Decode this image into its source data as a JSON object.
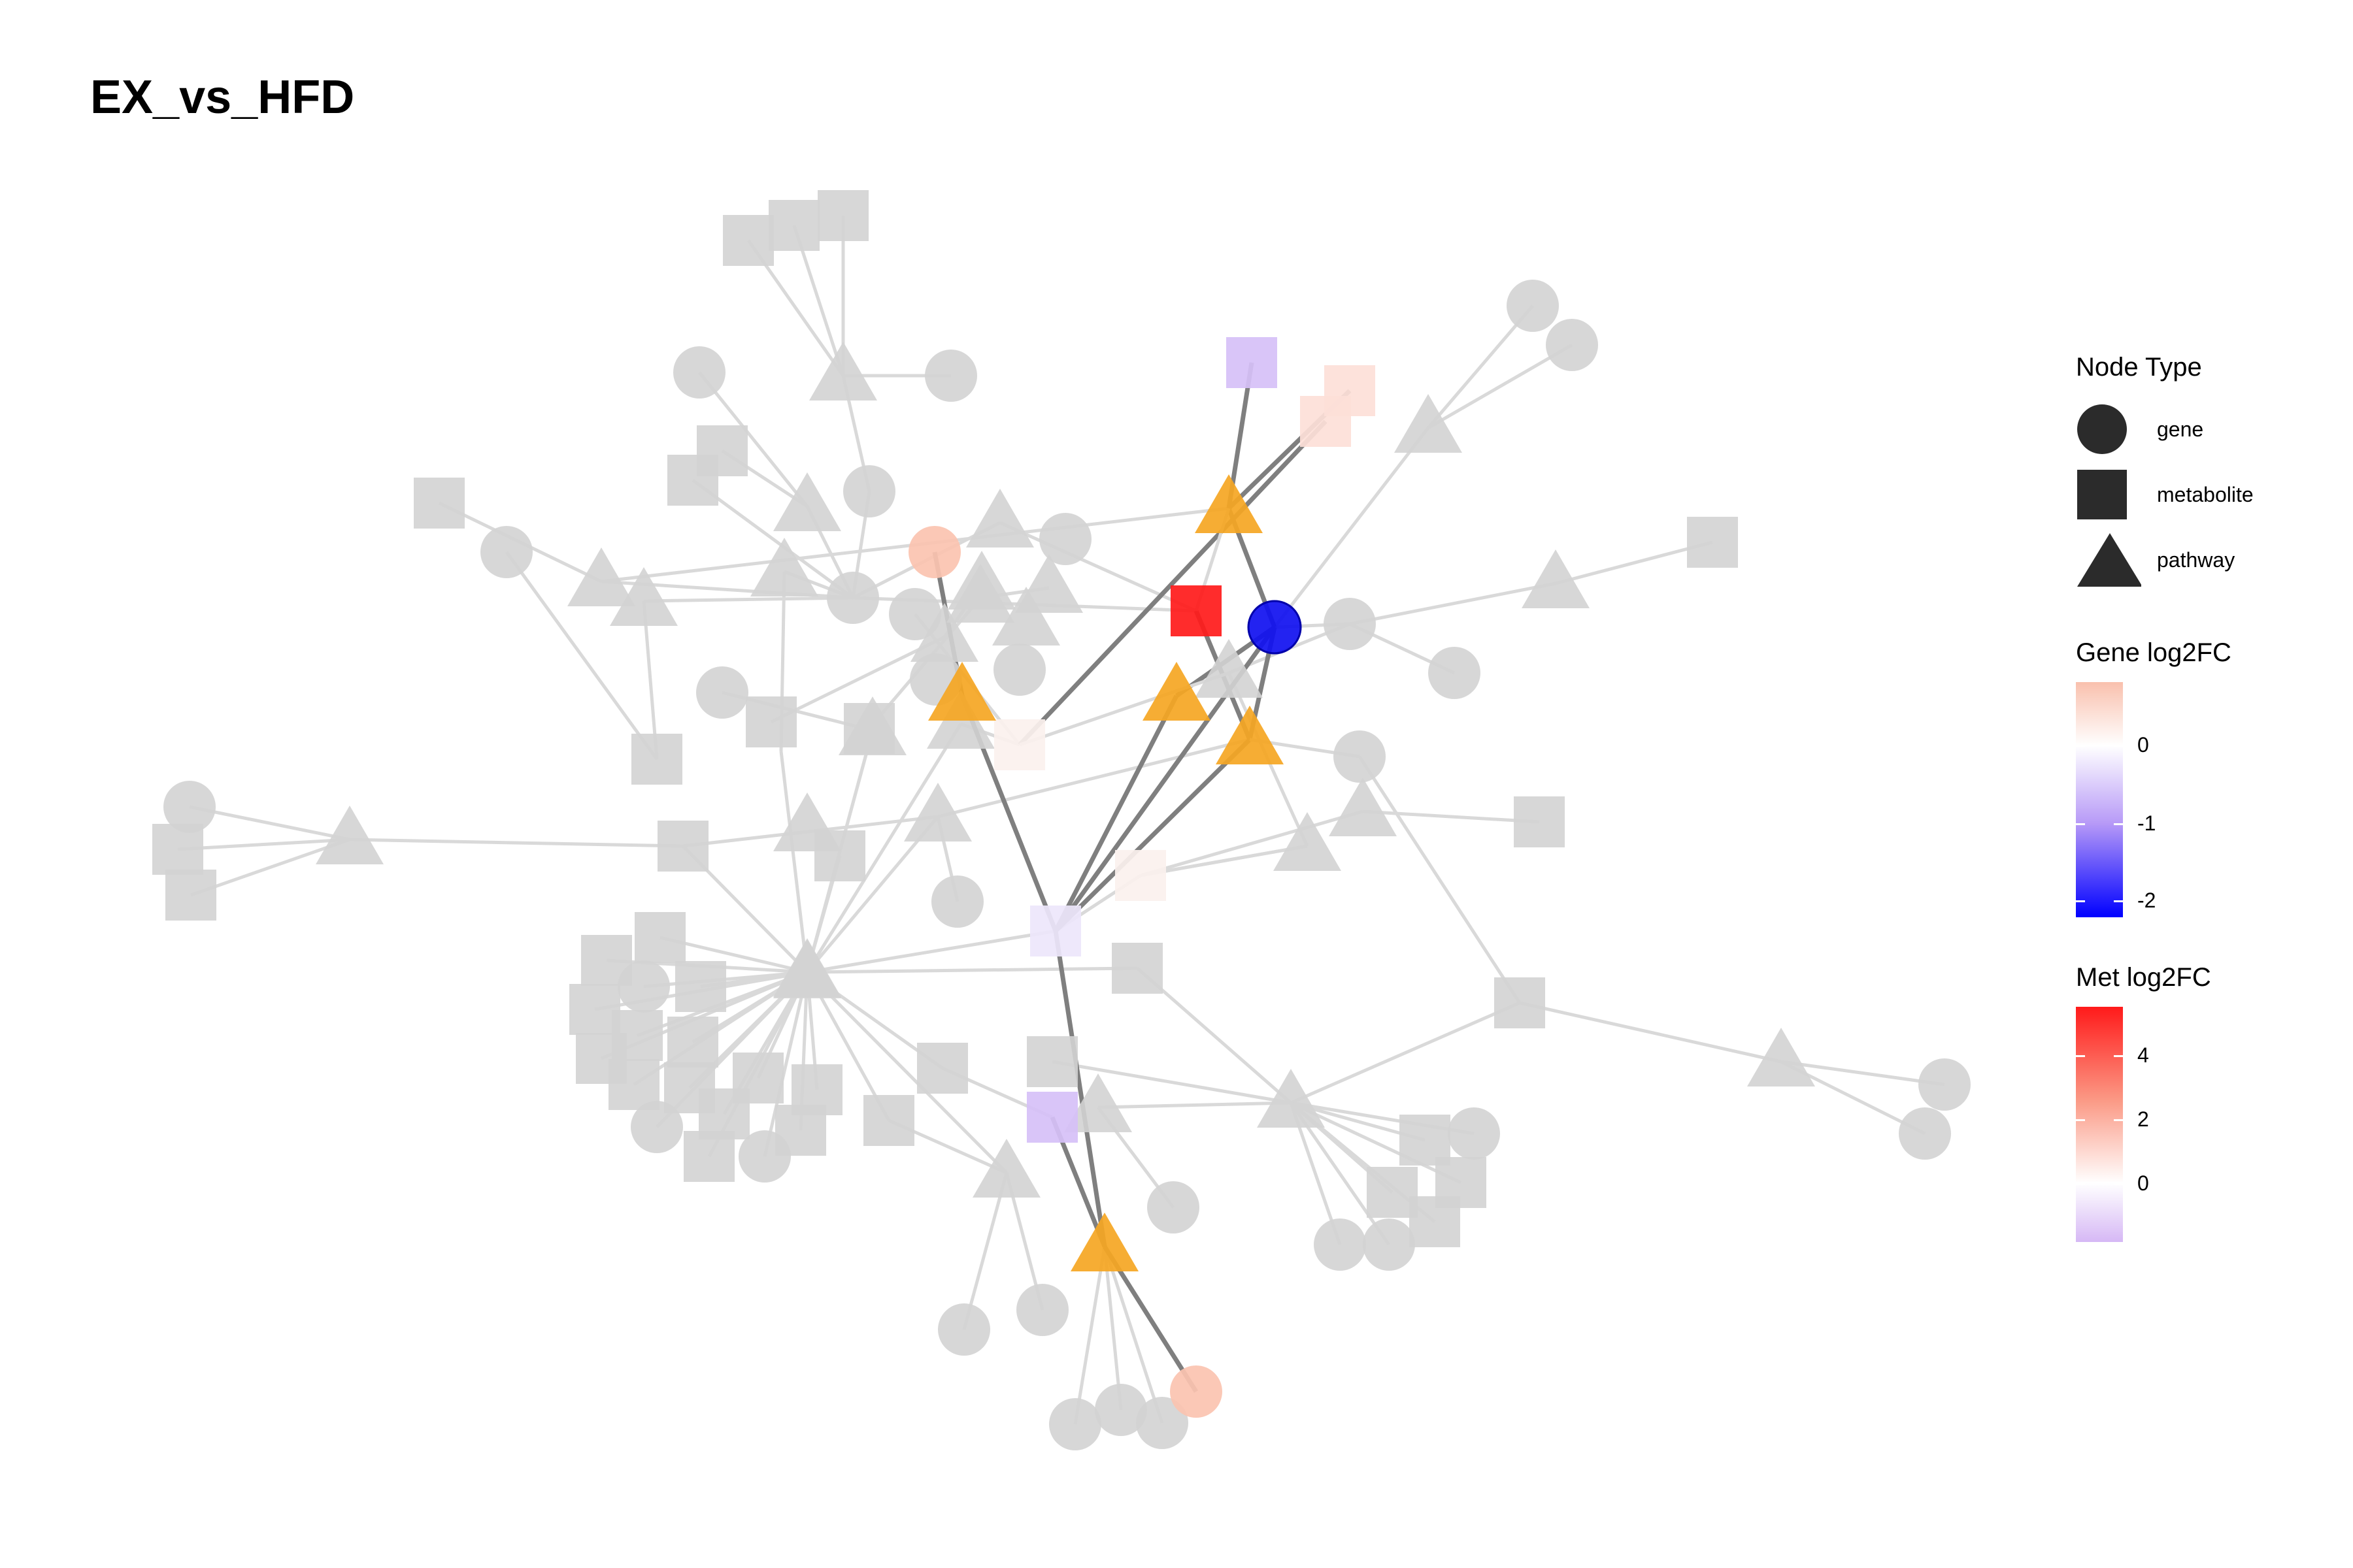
{
  "title": "EX_vs_HFD",
  "legend": {
    "node_type": {
      "title": "Node Type",
      "items": [
        {
          "label": "gene",
          "shape": "circle"
        },
        {
          "label": "metabolite",
          "shape": "square"
        },
        {
          "label": "pathway",
          "shape": "triangle"
        }
      ],
      "swatch_color": "#2b2b2b"
    },
    "gene_log2fc": {
      "title": "Gene log2FC",
      "ticks": [
        "0",
        "-1",
        "-2"
      ],
      "range": [
        -2.2,
        0.8
      ],
      "colors": {
        "low": "#0000ff",
        "mid": "#ffffff",
        "high": "#f9c0ad"
      }
    },
    "met_log2fc": {
      "title": "Met log2FC",
      "ticks": [
        "4",
        "2",
        "0"
      ],
      "range": [
        -1.6,
        5.6
      ],
      "colors": {
        "low": "#d6b8f5",
        "mid": "#ffffff",
        "high": "#ff1a1a"
      }
    }
  },
  "colors": {
    "inactive_node": "#d3d3d3",
    "inactive_edge": "#d9d9d9",
    "active_edge": "#7f7f7f",
    "active_pathway": "#f5a623",
    "met_up_strong": "#ff1a1a",
    "met_up_light": "#fde0d8",
    "met_near_zero": "#fbf1ee",
    "met_down": "#d6c0f7",
    "met_down_light": "#ede6fb",
    "gene_down": "#1010f0",
    "gene_up": "#fbc3b0"
  }
}
